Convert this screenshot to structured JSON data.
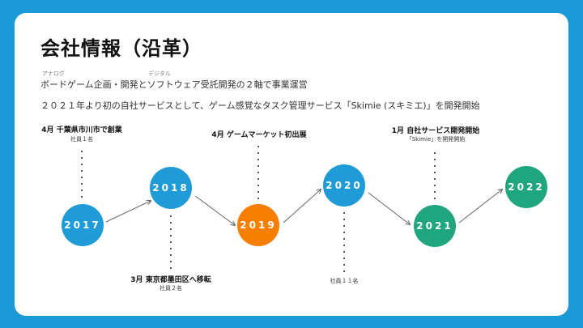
{
  "title": "会社情報（沿革）",
  "ruby_analog": "アナログ",
  "ruby_digital": "デジタル",
  "line1": "ボードゲーム企画・開発とソフトウェア受託開発の２軸で事業運営",
  "line2": "２０２１年より初の自社サービスとして、ゲーム感覚なタスク管理サービス「Skimie (スキミエ)」を開発開始",
  "colors": {
    "background": "#1a9ad6",
    "blue": "#1f9bd7",
    "orange": "#f77f00",
    "green": "#1fa67f"
  },
  "timeline": [
    {
      "year": "2017",
      "color": "blue",
      "event": "4月 千葉県市川市で創業",
      "note": "社員１名"
    },
    {
      "year": "2018",
      "color": "blue",
      "event": "3月 東京都墨田区へ移転",
      "note": "社員２名"
    },
    {
      "year": "2019",
      "color": "orange",
      "event": "4月 ゲームマーケット初出展",
      "note": ""
    },
    {
      "year": "2020",
      "color": "blue",
      "event": "",
      "note": "社員１１名"
    },
    {
      "year": "2021",
      "color": "green",
      "event": "1月 自社サービス開発開始",
      "note": "「Skimie」を開発開始"
    },
    {
      "year": "2022",
      "color": "green",
      "event": "",
      "note": ""
    }
  ]
}
